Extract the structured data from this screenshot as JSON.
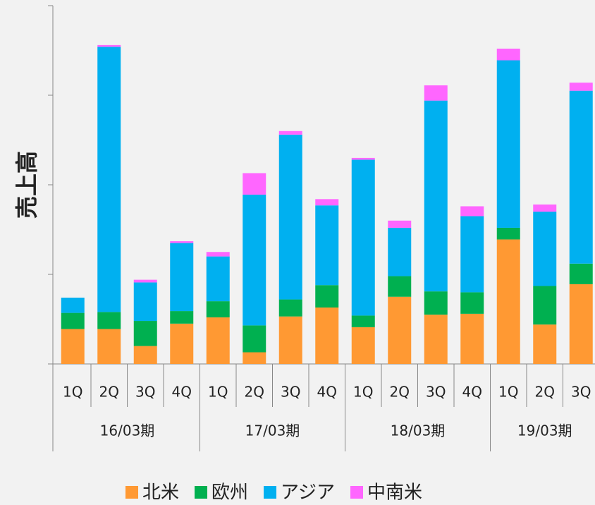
{
  "chart_data": {
    "type": "stacked_bar",
    "y_label": "売上高",
    "groups": [
      {
        "name": "16/03期",
        "categories": [
          "1Q",
          "2Q",
          "3Q",
          "4Q"
        ]
      },
      {
        "name": "17/03期",
        "categories": [
          "1Q",
          "2Q",
          "3Q",
          "4Q"
        ]
      },
      {
        "name": "18/03期",
        "categories": [
          "1Q",
          "2Q",
          "3Q",
          "4Q"
        ]
      },
      {
        "name": "19/03期",
        "categories": [
          "1Q",
          "2Q",
          "3Q"
        ]
      }
    ],
    "series": [
      {
        "name": "北米",
        "color": "#ff9933",
        "values": [
          39,
          39,
          20,
          45,
          52,
          13,
          53,
          63,
          41,
          75,
          55,
          56,
          139,
          44,
          89
        ]
      },
      {
        "name": "欧州",
        "color": "#00b050",
        "values": [
          18,
          19,
          28,
          14,
          18,
          30,
          19,
          25,
          13,
          23,
          26,
          24,
          13,
          43,
          23
        ]
      },
      {
        "name": "アジア",
        "color": "#00b0f0",
        "values": [
          17,
          296,
          43,
          76,
          50,
          146,
          184,
          89,
          174,
          54,
          213,
          85,
          187,
          83,
          193
        ]
      },
      {
        "name": "中南米",
        "color": "#ff66ff",
        "values": [
          0,
          2,
          3,
          2,
          5,
          24,
          4,
          7,
          2,
          8,
          17,
          11,
          13,
          8,
          9
        ]
      }
    ],
    "ylim": [
      0,
      400
    ],
    "yticks": [
      0,
      100,
      200,
      300,
      400
    ],
    "grid": false,
    "legend": "bottom"
  }
}
